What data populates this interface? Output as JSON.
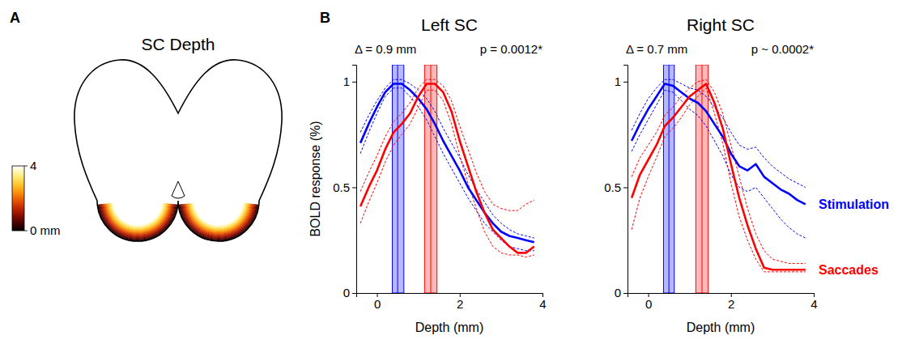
{
  "chart_data": [
    {
      "type": "diagram",
      "panel": "A",
      "title": "SC Depth",
      "colorbar": {
        "range": [
          0,
          4
        ],
        "ticks": [
          {
            "value": 0,
            "label": "0 mm"
          },
          4
        ]
      }
    },
    {
      "type": "line",
      "panel": "B",
      "title": "Left SC",
      "annotations": [
        "Δ = 0.9 mm",
        "p = 0.0012*"
      ],
      "x_label": "Depth (mm)",
      "y_label": "BOLD response (%)",
      "xlim": [
        -0.5,
        4
      ],
      "ylim": [
        0,
        1.08
      ],
      "xticks": [
        0,
        2,
        4
      ],
      "yticks": [
        0,
        0.5,
        1
      ],
      "x": [
        -0.4,
        -0.2,
        0,
        0.2,
        0.4,
        0.6,
        0.8,
        1,
        1.2,
        1.4,
        1.6,
        1.8,
        2,
        2.2,
        2.4,
        2.6,
        2.8,
        3,
        3.2,
        3.4,
        3.6,
        3.8
      ],
      "series": [
        {
          "color": "#0000ff",
          "values": [
            0.71,
            0.8,
            0.88,
            0.95,
            0.99,
            0.99,
            0.96,
            0.92,
            0.87,
            0.8,
            0.72,
            0.65,
            0.58,
            0.5,
            0.44,
            0.38,
            0.33,
            0.29,
            0.27,
            0.26,
            0.25,
            0.24
          ],
          "upper": [
            0.76,
            0.84,
            0.91,
            0.97,
            1.01,
            1.01,
            0.99,
            0.96,
            0.92,
            0.86,
            0.78,
            0.71,
            0.64,
            0.56,
            0.49,
            0.43,
            0.37,
            0.33,
            0.3,
            0.28,
            0.27,
            0.26
          ],
          "lower": [
            0.66,
            0.76,
            0.85,
            0.93,
            0.97,
            0.97,
            0.93,
            0.88,
            0.82,
            0.74,
            0.66,
            0.59,
            0.52,
            0.45,
            0.39,
            0.33,
            0.29,
            0.25,
            0.22,
            0.21,
            0.2,
            0.2
          ],
          "peak": 0.5,
          "peak_range": [
            0.37,
            0.65
          ]
        },
        {
          "color": "#ff0000",
          "values": [
            0.41,
            0.5,
            0.58,
            0.68,
            0.76,
            0.8,
            0.85,
            0.93,
            0.99,
            0.99,
            0.95,
            0.86,
            0.72,
            0.6,
            0.48,
            0.38,
            0.3,
            0.26,
            0.22,
            0.19,
            0.19,
            0.22
          ],
          "upper": [
            0.48,
            0.57,
            0.65,
            0.74,
            0.81,
            0.85,
            0.9,
            0.97,
            1.01,
            1.01,
            0.98,
            0.91,
            0.79,
            0.68,
            0.57,
            0.48,
            0.42,
            0.4,
            0.39,
            0.39,
            0.42,
            0.44
          ],
          "lower": [
            0.33,
            0.43,
            0.52,
            0.62,
            0.7,
            0.75,
            0.8,
            0.88,
            0.96,
            0.96,
            0.91,
            0.8,
            0.65,
            0.52,
            0.4,
            0.29,
            0.22,
            0.19,
            0.18,
            0.18,
            0.17,
            0.18
          ],
          "peak": 1.3,
          "peak_range": [
            1.15,
            1.45
          ]
        }
      ]
    },
    {
      "type": "line",
      "title": "Right SC",
      "annotations": [
        "Δ = 0.7 mm",
        "p ~ 0.0002*"
      ],
      "x_label": "Depth (mm)",
      "legend": "right",
      "xlim": [
        -0.5,
        4
      ],
      "ylim": [
        0,
        1.08
      ],
      "xticks": [
        0,
        2,
        4
      ],
      "yticks": [
        0,
        0.5,
        1
      ],
      "x": [
        -0.4,
        -0.2,
        0,
        0.2,
        0.4,
        0.6,
        0.8,
        1,
        1.2,
        1.4,
        1.6,
        1.8,
        2,
        2.2,
        2.4,
        2.6,
        2.8,
        3,
        3.2,
        3.4,
        3.6,
        3.8
      ],
      "series": [
        {
          "name": "Stimulation",
          "color": "#0000ff",
          "values": [
            0.72,
            0.8,
            0.87,
            0.93,
            0.99,
            0.98,
            0.95,
            0.92,
            0.9,
            0.86,
            0.8,
            0.74,
            0.66,
            0.6,
            0.58,
            0.61,
            0.55,
            0.52,
            0.49,
            0.47,
            0.44,
            0.42
          ],
          "upper": [
            0.77,
            0.85,
            0.92,
            0.97,
            1.01,
            1.01,
            0.99,
            0.97,
            0.96,
            0.93,
            0.88,
            0.83,
            0.76,
            0.7,
            0.68,
            0.69,
            0.64,
            0.6,
            0.57,
            0.54,
            0.52,
            0.5
          ],
          "lower": [
            0.67,
            0.75,
            0.82,
            0.89,
            0.96,
            0.95,
            0.91,
            0.87,
            0.84,
            0.79,
            0.72,
            0.65,
            0.56,
            0.5,
            0.48,
            0.5,
            0.45,
            0.4,
            0.35,
            0.31,
            0.28,
            0.26
          ],
          "peak": 0.5,
          "peak_range": [
            0.37,
            0.63
          ]
        },
        {
          "name": "Saccades",
          "color": "#ff0000",
          "values": [
            0.45,
            0.56,
            0.63,
            0.7,
            0.79,
            0.83,
            0.88,
            0.93,
            0.96,
            0.99,
            0.9,
            0.78,
            0.61,
            0.45,
            0.32,
            0.21,
            0.12,
            0.11,
            0.11,
            0.11,
            0.11,
            0.11
          ],
          "upper": [
            0.55,
            0.64,
            0.7,
            0.76,
            0.84,
            0.88,
            0.93,
            0.97,
            1.0,
            1.01,
            0.95,
            0.85,
            0.7,
            0.55,
            0.4,
            0.28,
            0.2,
            0.16,
            0.15,
            0.14,
            0.14,
            0.14
          ],
          "lower": [
            0.3,
            0.45,
            0.55,
            0.64,
            0.74,
            0.78,
            0.83,
            0.89,
            0.93,
            0.97,
            0.85,
            0.71,
            0.52,
            0.36,
            0.25,
            0.16,
            0.1,
            0.1,
            0.1,
            0.1,
            0.1,
            0.1
          ],
          "peak": 1.3,
          "peak_range": [
            1.15,
            1.45
          ]
        }
      ]
    }
  ]
}
